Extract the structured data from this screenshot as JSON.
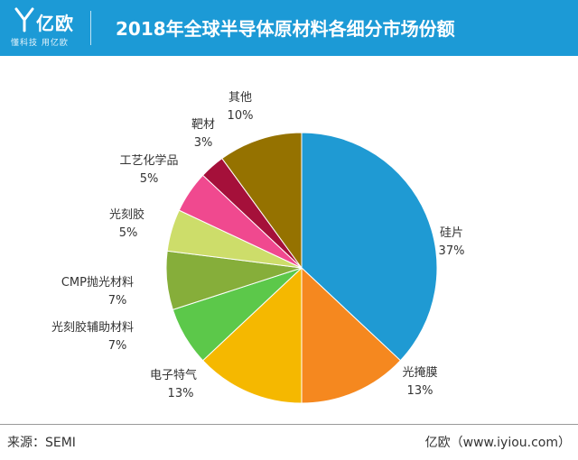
{
  "header": {
    "logo_name": "亿欧",
    "logo_slogan": "懂科技 用亿欧",
    "title": "2018年全球半导体原材料各细分市场份额"
  },
  "footer": {
    "source": "来源：SEMI",
    "brand": "亿欧（www.iyiou.com）"
  },
  "colors": {
    "header_bg": "#1c9ad6"
  },
  "chart_data": {
    "type": "pie",
    "title": "2018年全球半导体原材料各细分市场份额",
    "unit": "%",
    "categories": [
      "硅片",
      "光掩膜",
      "电子特气",
      "光刻胶辅助材料",
      "CMP抛光材料",
      "光刻胶",
      "工艺化学品",
      "靶材",
      "其他"
    ],
    "values": [
      37,
      13,
      13,
      7,
      7,
      5,
      5,
      3,
      10
    ],
    "labels": [
      "37%",
      "13%",
      "13%",
      "7%",
      "7%",
      "5%",
      "5%",
      "3%",
      "10%"
    ],
    "colors": [
      "#1f9ad3",
      "#f5881f",
      "#f5b800",
      "#5cc84a",
      "#86ae3a",
      "#cddd6a",
      "#f0498f",
      "#a5103a",
      "#957200"
    ]
  }
}
